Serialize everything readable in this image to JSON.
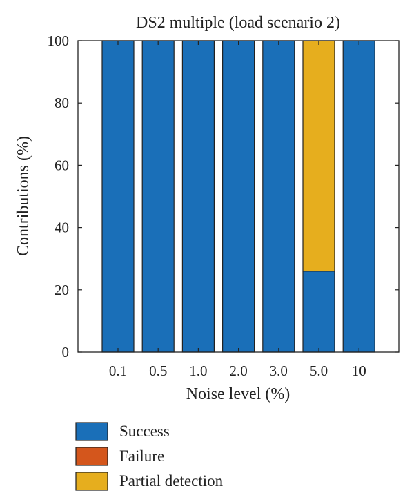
{
  "chart_data": {
    "type": "bar",
    "stacked": true,
    "title": "DS2 multiple (load scenario 2)",
    "xlabel": "Noise level (%)",
    "ylabel": "Contributions (%)",
    "ylim": [
      0,
      100
    ],
    "yticks": [
      "0",
      "20",
      "40",
      "60",
      "80",
      "100"
    ],
    "categories": [
      "0.1",
      "0.5",
      "1.0",
      "2.0",
      "3.0",
      "5.0",
      "10"
    ],
    "series": [
      {
        "name": "Success",
        "color": "#1a6fb8",
        "values": [
          100,
          100,
          100,
          100,
          100,
          26,
          100
        ]
      },
      {
        "name": "Failure",
        "color": "#d4561c",
        "values": [
          0,
          0,
          0,
          0,
          0,
          0,
          0
        ]
      },
      {
        "name": "Partial detection",
        "color": "#e6ae1e",
        "values": [
          0,
          0,
          0,
          0,
          0,
          74,
          0
        ]
      }
    ],
    "legend_position": "bottom-left",
    "grid": false
  }
}
